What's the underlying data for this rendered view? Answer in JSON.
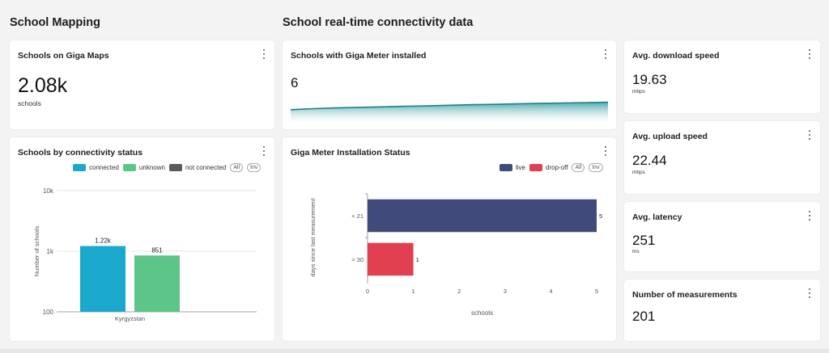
{
  "sections": {
    "school_mapping": "School Mapping",
    "realtime": "School real-time connectivity data"
  },
  "giga_maps": {
    "title": "Schools on Giga Maps",
    "value": "2.08k",
    "unit": "schools"
  },
  "connectivity_status": {
    "title": "Schools by connectivity status",
    "legend": [
      {
        "label": "connected",
        "color": "#1aa9cc"
      },
      {
        "label": "unknown",
        "color": "#5cc689"
      },
      {
        "label": "not connected",
        "color": "#5a5a5a"
      }
    ],
    "all_label": "All",
    "inv_label": "Inv"
  },
  "giga_meter": {
    "title": "Schools with Giga Meter installed",
    "value": "6"
  },
  "install_status": {
    "title": "Giga Meter Installation Status",
    "legend": [
      {
        "label": "live",
        "color": "#414b7b"
      },
      {
        "label": "drop-off",
        "color": "#e0404f"
      }
    ],
    "all_label": "All",
    "inv_label": "Inv"
  },
  "download": {
    "title": "Avg. download speed",
    "value": "19.63",
    "unit": "mbps"
  },
  "upload": {
    "title": "Avg. upload speed",
    "value": "22.44",
    "unit": "mbps"
  },
  "latency": {
    "title": "Avg. latency",
    "value": "251",
    "unit": "ms"
  },
  "measurements": {
    "title": "Number of measurements",
    "value": "201"
  },
  "chart_data": [
    {
      "type": "bar",
      "title": "Schools by connectivity status",
      "categories": [
        "Kyrgyzstan"
      ],
      "series": [
        {
          "name": "connected",
          "values": [
            1220
          ],
          "label": "1.22k",
          "color": "#1aa9cc"
        },
        {
          "name": "unknown",
          "values": [
            851
          ],
          "label": "851",
          "color": "#5cc689"
        }
      ],
      "ylabel": "Number of schools",
      "yscale": "log",
      "ylim": [
        100,
        10000
      ],
      "yticks": [
        "100",
        "1k",
        "10k"
      ],
      "grid": true
    },
    {
      "type": "bar",
      "orientation": "horizontal",
      "title": "Giga Meter Installation Status",
      "categories": [
        "< 21",
        "> 30"
      ],
      "series": [
        {
          "name": "live",
          "values": [
            5,
            null
          ],
          "color": "#414b7b"
        },
        {
          "name": "drop-off",
          "values": [
            null,
            1
          ],
          "color": "#e0404f"
        }
      ],
      "xlabel": "schools",
      "ylabel": "days since last measurement",
      "xlim": [
        0,
        5
      ],
      "xticks": [
        "0",
        "1",
        "2",
        "3",
        "4",
        "5"
      ]
    },
    {
      "type": "area",
      "title": "Schools with Giga Meter installed",
      "y": [
        1.0,
        1.6,
        2.0,
        2.3,
        2.6,
        2.9,
        3.2,
        3.5,
        3.8,
        4.0,
        4.3,
        4.6,
        4.8,
        5.0,
        5.2
      ]
    }
  ]
}
